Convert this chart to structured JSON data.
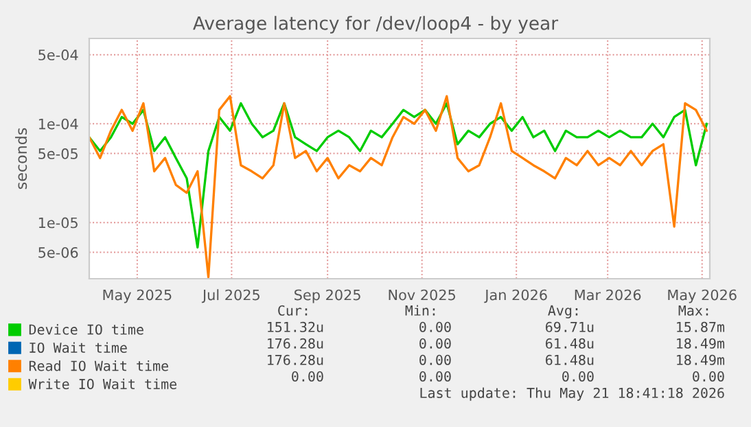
{
  "chart_data": {
    "type": "line",
    "title": "Average latency for /dev/loop4 - by year",
    "ylabel": "seconds",
    "x": [
      "2025-04-15",
      "2025-04-22",
      "2025-04-29",
      "2025-05-06",
      "2025-05-13",
      "2025-05-20",
      "2025-05-27",
      "2025-06-03",
      "2025-06-10",
      "2025-06-17",
      "2025-06-24",
      "2025-07-01",
      "2025-07-08",
      "2025-07-15",
      "2025-07-22",
      "2025-07-29",
      "2025-08-05",
      "2025-08-12",
      "2025-08-19",
      "2025-08-26",
      "2025-09-02",
      "2025-09-09",
      "2025-09-16",
      "2025-09-23",
      "2025-09-30",
      "2025-10-07",
      "2025-10-14",
      "2025-10-21",
      "2025-10-28",
      "2025-11-04",
      "2025-11-11",
      "2025-11-18",
      "2025-11-25",
      "2025-12-02",
      "2025-12-09",
      "2025-12-16",
      "2025-12-23",
      "2025-12-30",
      "2026-01-06",
      "2026-01-13",
      "2026-01-20",
      "2026-01-27",
      "2026-02-03",
      "2026-02-10",
      "2026-02-17",
      "2026-02-24",
      "2026-03-03",
      "2026-03-10",
      "2026-03-17",
      "2026-03-24",
      "2026-03-31",
      "2026-04-07",
      "2026-04-14",
      "2026-04-21",
      "2026-04-28",
      "2026-05-05",
      "2026-05-12",
      "2026-05-19"
    ],
    "series": [
      {
        "name": "Device IO time",
        "color": "#00cc00",
        "values": [
          7.3e-05,
          5.3e-05,
          7.3e-05,
          0.000117,
          0.0001,
          0.000138,
          5.3e-05,
          7.3e-05,
          4.5e-05,
          2.8e-05,
          5.6e-06,
          5.3e-05,
          0.000117,
          8.5e-05,
          0.000161,
          0.0001,
          7.3e-05,
          8.5e-05,
          0.000161,
          7.3e-05,
          6.2e-05,
          5.3e-05,
          7.3e-05,
          8.5e-05,
          7.3e-05,
          5.3e-05,
          8.5e-05,
          7.3e-05,
          0.0001,
          0.000138,
          0.000117,
          0.000138,
          0.0001,
          0.000161,
          6.2e-05,
          8.5e-05,
          7.3e-05,
          0.0001,
          0.000117,
          8.5e-05,
          0.000117,
          7.3e-05,
          8.5e-05,
          5.3e-05,
          8.5e-05,
          7.3e-05,
          7.3e-05,
          8.5e-05,
          7.3e-05,
          8.5e-05,
          7.3e-05,
          7.3e-05,
          0.0001,
          7.3e-05,
          0.000117,
          0.000138,
          3.8e-05,
          0.0001
        ]
      },
      {
        "name": "IO Wait time",
        "color": "#0066b3",
        "values": [
          null,
          null,
          null,
          null,
          null,
          null,
          null,
          null,
          null,
          null,
          null,
          null,
          null,
          null,
          null,
          null,
          null,
          null,
          null,
          null,
          null,
          null,
          null,
          null,
          null,
          null,
          null,
          null,
          null,
          null,
          null,
          null,
          null,
          null,
          null,
          null,
          null,
          null,
          null,
          null,
          null,
          null,
          null,
          null,
          null,
          null,
          null,
          null,
          null,
          null,
          null,
          null,
          null,
          null,
          null,
          null,
          null,
          null
        ]
      },
      {
        "name": "Read IO Wait time",
        "color": "#ff8000",
        "values": [
          7.3e-05,
          4.5e-05,
          8.5e-05,
          0.000138,
          8.5e-05,
          0.000161,
          3.3e-05,
          4.5e-05,
          2.4e-05,
          2e-05,
          3.3e-05,
          2.8e-06,
          0.000138,
          0.00019,
          3.8e-05,
          3.3e-05,
          2.8e-05,
          3.8e-05,
          0.000161,
          4.5e-05,
          5.3e-05,
          3.3e-05,
          4.5e-05,
          2.8e-05,
          3.8e-05,
          3.3e-05,
          4.5e-05,
          3.8e-05,
          7.3e-05,
          0.000117,
          0.0001,
          0.000138,
          8.5e-05,
          0.00019,
          4.5e-05,
          3.3e-05,
          3.8e-05,
          7.3e-05,
          0.000161,
          5.3e-05,
          4.5e-05,
          3.8e-05,
          3.3e-05,
          2.8e-05,
          4.5e-05,
          3.8e-05,
          5.3e-05,
          3.8e-05,
          4.5e-05,
          3.8e-05,
          5.3e-05,
          3.8e-05,
          5.3e-05,
          6.2e-05,
          9.1e-06,
          0.000161,
          0.000138,
          8.5e-05
        ]
      },
      {
        "name": "Write IO Wait time",
        "color": "#ffcc00",
        "values": [
          null,
          null,
          null,
          null,
          null,
          null,
          null,
          null,
          null,
          null,
          null,
          null,
          null,
          null,
          null,
          null,
          null,
          null,
          null,
          null,
          null,
          null,
          null,
          null,
          null,
          null,
          null,
          null,
          null,
          null,
          null,
          null,
          null,
          null,
          null,
          null,
          null,
          null,
          null,
          null,
          null,
          null,
          null,
          null,
          null,
          null,
          null,
          null,
          null,
          null,
          null,
          null,
          null,
          null,
          null,
          null,
          null,
          null
        ]
      }
    ],
    "log": "y",
    "ylim": [
      2.7e-06,
      0.00073
    ],
    "yticks": [
      {
        "value": 5e-06,
        "label": "5e-06"
      },
      {
        "value": 1e-05,
        "label": "1e-05"
      },
      {
        "value": 5e-05,
        "label": "5e-05"
      },
      {
        "value": 0.0001,
        "label": "1e-04"
      },
      {
        "value": 0.0005,
        "label": "5e-04"
      }
    ],
    "xlim": [
      "2025-04-15",
      "2026-05-21"
    ],
    "xticks": [
      {
        "value": "2025-05-16",
        "label": "May 2025"
      },
      {
        "value": "2025-07-16",
        "label": "Jul 2025"
      },
      {
        "value": "2025-09-16",
        "label": "Sep 2025"
      },
      {
        "value": "2025-11-16",
        "label": "Nov 2025"
      },
      {
        "value": "2026-01-16",
        "label": "Jan 2026"
      },
      {
        "value": "2026-03-16",
        "label": "Mar 2026"
      },
      {
        "value": "2026-05-16",
        "label": "May 2026"
      }
    ],
    "grid": true,
    "legend": "bottom left",
    "line_style": "solid",
    "marker": "none",
    "annotations": [
      "Cur:",
      "Min:",
      "Avg:",
      "Max:",
      "151.32u",
      "0.00",
      "69.71u",
      "15.87m",
      "176.28u",
      "0.00",
      "61.48u",
      "18.49m",
      "176.28u",
      "0.00",
      "61.48u",
      "18.49m",
      "0.00",
      "0.00",
      "0.00",
      "0.00",
      "Last update: Thu May 21 18:41:18 2026"
    ]
  }
}
